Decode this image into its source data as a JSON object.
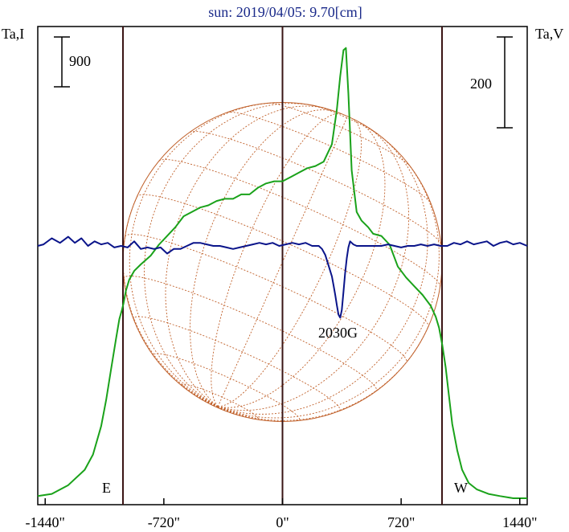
{
  "chart_data": {
    "type": "line",
    "title": "sun: 2019/04/05: 9.70[cm]",
    "y_label_left": "Ta,I",
    "y_label_right": "Ta,V",
    "scale_left_label": "900",
    "scale_right_label": "200",
    "x_ticks": [
      {
        "value": -1440,
        "label": "-1440\""
      },
      {
        "value": -720,
        "label": "-720\""
      },
      {
        "value": 0,
        "label": "0\""
      },
      {
        "value": 720,
        "label": "720\""
      },
      {
        "value": 1440,
        "label": "1440\""
      }
    ],
    "xlim": [
      -1485,
      1485
    ],
    "limb_arcsec": 968,
    "limb_lines": [
      -968,
      0,
      968
    ],
    "east_label": "E",
    "west_label": "W",
    "annotation": {
      "text": "2030G",
      "x": 360
    },
    "series": [
      {
        "color": "#1aa21a",
        "axis": "I",
        "x": [
          -1485,
          -1400,
          -1300,
          -1200,
          -1150,
          -1100,
          -1070,
          -1040,
          -1010,
          -990,
          -975,
          -965,
          -950,
          -930,
          -900,
          -860,
          -800,
          -750,
          -700,
          -650,
          -600,
          -550,
          -500,
          -450,
          -400,
          -350,
          -300,
          -250,
          -200,
          -150,
          -100,
          -50,
          0,
          50,
          100,
          150,
          200,
          250,
          300,
          330,
          350,
          370,
          385,
          400,
          420,
          450,
          480,
          520,
          550,
          600,
          650,
          700,
          750,
          800,
          850,
          900,
          930,
          950,
          970,
          990,
          1010,
          1030,
          1060,
          1090,
          1130,
          1180,
          1250,
          1320,
          1400,
          1485
        ],
        "y": [
          0.01,
          0.02,
          0.06,
          0.13,
          0.2,
          0.33,
          0.45,
          0.59,
          0.73,
          0.82,
          0.86,
          0.89,
          0.95,
          1.0,
          1.04,
          1.07,
          1.11,
          1.16,
          1.2,
          1.24,
          1.29,
          1.31,
          1.33,
          1.34,
          1.36,
          1.37,
          1.37,
          1.39,
          1.39,
          1.42,
          1.44,
          1.45,
          1.45,
          1.47,
          1.49,
          1.51,
          1.52,
          1.54,
          1.62,
          1.78,
          1.93,
          2.05,
          2.06,
          1.85,
          1.5,
          1.31,
          1.27,
          1.24,
          1.21,
          1.2,
          1.16,
          1.06,
          1.01,
          0.97,
          0.93,
          0.88,
          0.83,
          0.78,
          0.7,
          0.6,
          0.47,
          0.34,
          0.22,
          0.13,
          0.07,
          0.04,
          0.02,
          0.01,
          0.0,
          0.0
        ]
      },
      {
        "color": "#0a148a",
        "axis": "V",
        "x": [
          -1485,
          -1450,
          -1400,
          -1350,
          -1300,
          -1260,
          -1220,
          -1180,
          -1140,
          -1100,
          -1060,
          -1020,
          -980,
          -940,
          -900,
          -860,
          -820,
          -780,
          -740,
          -700,
          -660,
          -620,
          -580,
          -540,
          -500,
          -460,
          -420,
          -380,
          -340,
          -300,
          -260,
          -220,
          -180,
          -140,
          -100,
          -60,
          -20,
          20,
          60,
          100,
          140,
          180,
          220,
          240,
          260,
          280,
          300,
          310,
          320,
          330,
          340,
          350,
          360,
          370,
          380,
          390,
          400,
          410,
          430,
          450,
          480,
          520,
          560,
          600,
          640,
          680,
          720,
          760,
          800,
          840,
          880,
          920,
          960,
          1000,
          1040,
          1080,
          1120,
          1160,
          1200,
          1240,
          1280,
          1320,
          1360,
          1400,
          1440,
          1485
        ],
        "y": [
          0.0,
          0.01,
          0.05,
          0.02,
          0.06,
          0.02,
          0.05,
          0.0,
          0.03,
          0.01,
          0.02,
          -0.01,
          0.0,
          -0.01,
          0.03,
          -0.02,
          -0.01,
          -0.02,
          -0.01,
          -0.05,
          -0.02,
          -0.02,
          0.0,
          0.02,
          0.02,
          0.01,
          0.0,
          0.0,
          -0.01,
          -0.02,
          -0.01,
          0.0,
          0.01,
          0.02,
          0.01,
          0.02,
          0.0,
          0.01,
          0.02,
          0.01,
          0.02,
          0.0,
          0.0,
          -0.02,
          -0.06,
          -0.13,
          -0.2,
          -0.26,
          -0.32,
          -0.39,
          -0.45,
          -0.47,
          -0.42,
          -0.3,
          -0.18,
          -0.08,
          -0.01,
          0.03,
          0.01,
          0.0,
          0.0,
          0.0,
          0.0,
          0.0,
          0.01,
          0.0,
          -0.01,
          0.0,
          0.0,
          0.01,
          0.0,
          0.01,
          0.0,
          0.0,
          0.02,
          0.01,
          0.03,
          0.01,
          0.02,
          0.03,
          0.0,
          0.02,
          0.03,
          0.01,
          0.02,
          0.0
        ]
      }
    ],
    "colors": {
      "axes": "#000000",
      "limb_lines": "#3a1414",
      "grid": "#c0602a"
    }
  }
}
